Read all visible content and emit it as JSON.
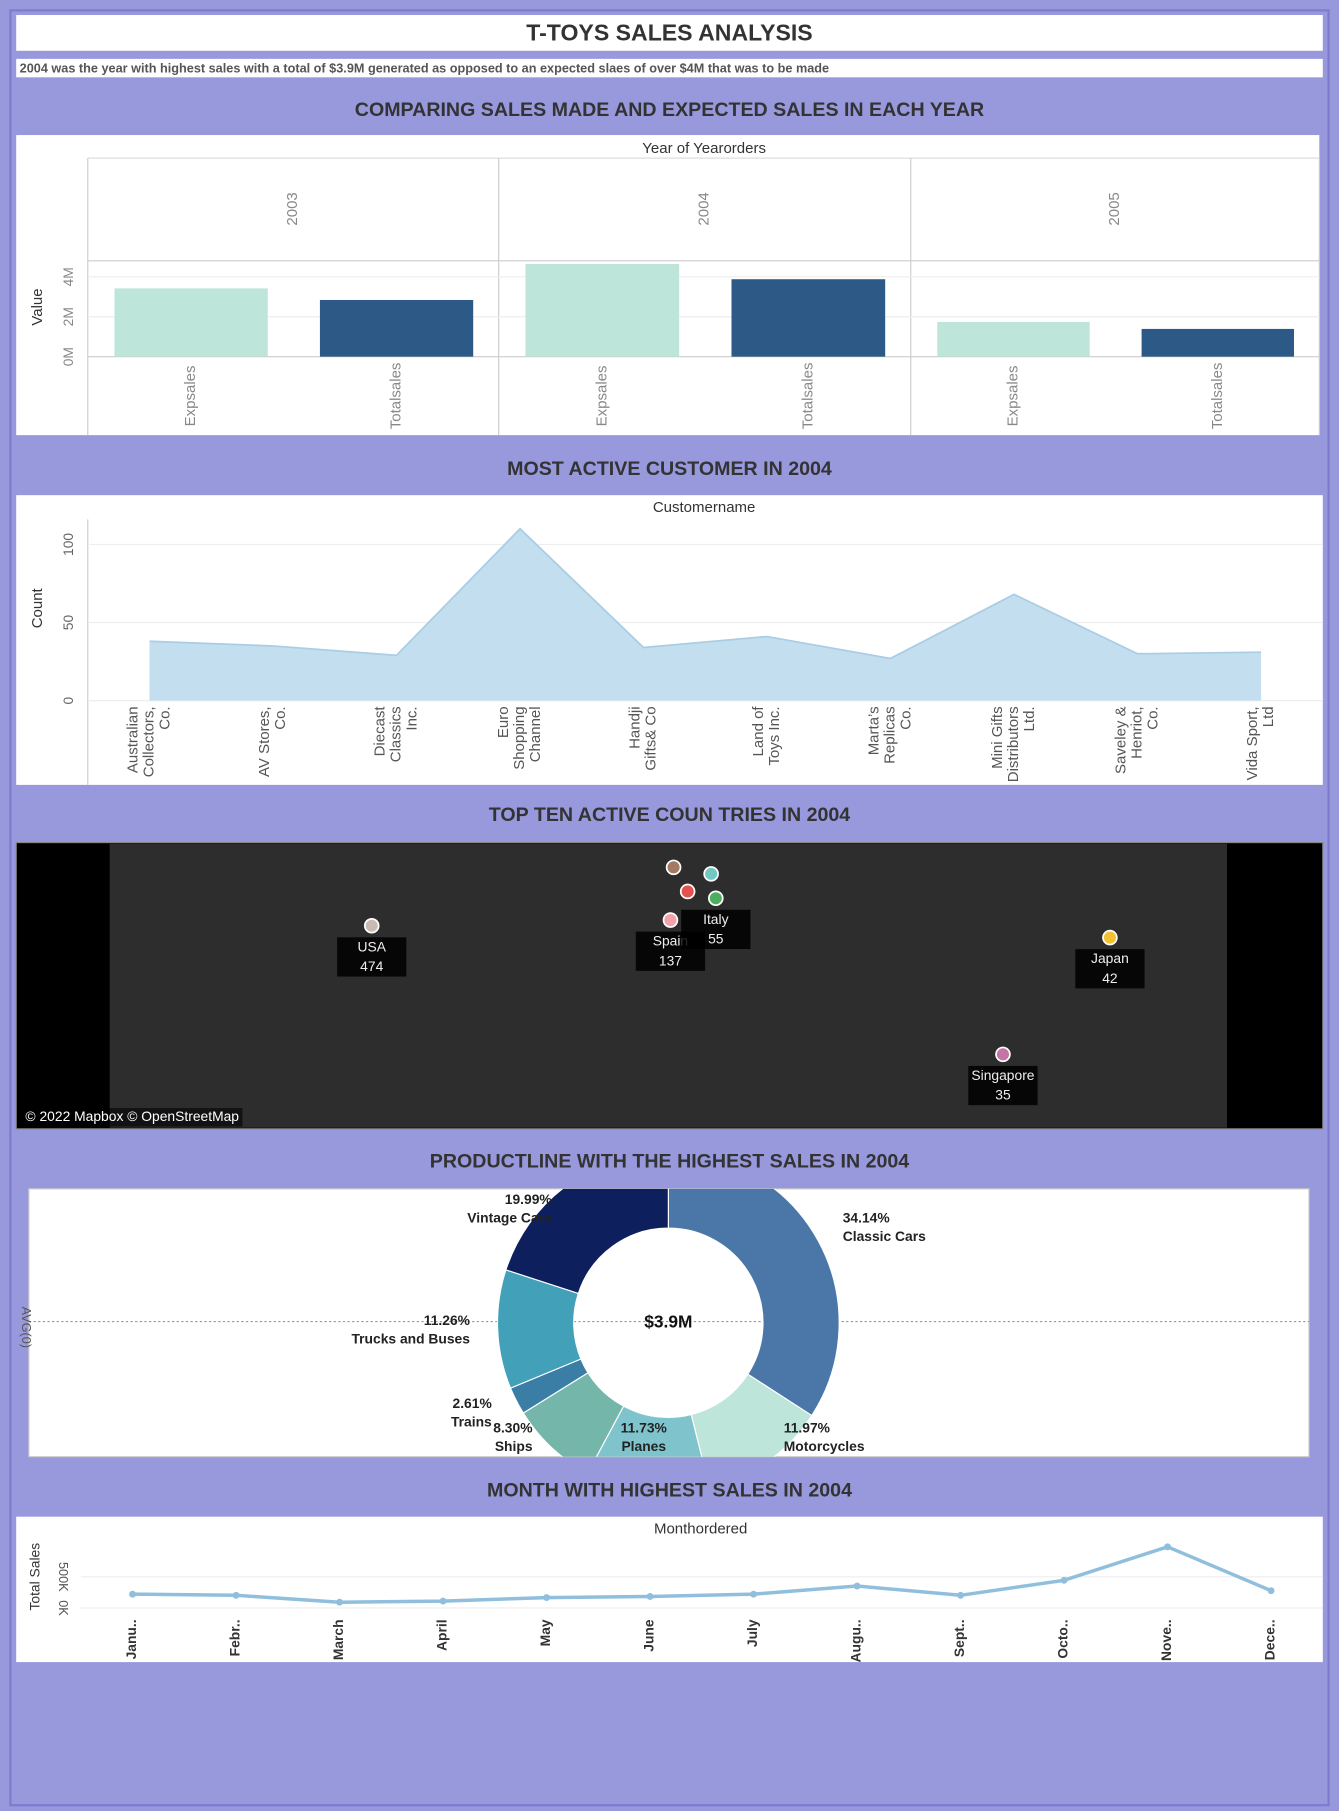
{
  "title": "T-TOYS SALES ANALYSIS",
  "subtitle": "2004 was the year with highest sales with a total of $3.9M generated as opposed to an expected slaes of over $4M that was to be made",
  "chart_data": [
    {
      "type": "bar",
      "title": "COMPARING SALES MADE AND EXPECTED SALES IN EACH YEAR",
      "x_label": "Year of Yearorders",
      "y_label": "Value",
      "categories": [
        "2003",
        "2004",
        "2005"
      ],
      "series": [
        {
          "name": "Expsales",
          "color": "#bde5da",
          "values": [
            3420000,
            4640000,
            1740000
          ]
        },
        {
          "name": "Totalsales",
          "color": "#2c5985",
          "values": [
            2840000,
            3880000,
            1390000
          ]
        }
      ],
      "ylim": [
        0,
        4800000
      ],
      "yticks": [
        {
          "value": 0,
          "label": "0M"
        },
        {
          "value": 2000000,
          "label": "2M"
        },
        {
          "value": 4000000,
          "label": "4M"
        }
      ],
      "grid": true
    },
    {
      "type": "area",
      "title": "MOST ACTIVE CUSTOMER IN 2004",
      "x_label": "Customername",
      "y_label": "Count",
      "categories": [
        "Australian Collectors, Co.",
        "AV Stores, Co.",
        "Diecast Classics Inc.",
        "Euro Shopping Channel",
        "Handji Gifts& Co",
        "Land of Toys Inc.",
        "Marta’s Replicas Co.",
        "Mini Gifts Distributors Ltd.",
        "Saveley & Henriot, Co.",
        "Vida Sport, Ltd"
      ],
      "values": [
        38,
        35,
        29,
        110,
        34,
        41,
        27,
        68,
        30,
        31
      ],
      "color": "#c0dcee",
      "ylim": [
        0,
        116
      ],
      "yticks": [
        0,
        50,
        100
      ],
      "grid": true
    },
    {
      "type": "map",
      "title": "TOP TEN ACTIVE COUN TRIES IN 2004",
      "countries": [
        "USA",
        "Spain",
        "Italy",
        "Japan",
        "Singapore",
        null,
        null,
        null
      ],
      "values": [
        474,
        137,
        55,
        42,
        35,
        null,
        null,
        null
      ],
      "lon": [
        -98,
        -2.5,
        12,
        138,
        103.8,
        -1.5,
        10.5,
        3
      ],
      "lat": [
        39,
        40.4,
        45.5,
        36,
        1.3,
        52,
        50.7,
        47
      ],
      "colors": [
        "#c9bbb3",
        "#f4a2aa",
        "#4caf60",
        "#f2c233",
        "#c474a6",
        "#a57a62",
        "#72c9c1",
        "#e35252"
      ],
      "attribution": "© 2022 Mapbox © OpenStreetMap"
    },
    {
      "type": "pie",
      "title": "PRODUCTLINE WITH THE HIGHEST SALES IN 2004",
      "y_label": "AVG(0)",
      "center_label": "$3.9M",
      "categories": [
        "Classic Cars",
        "Motorcycles",
        "Planes",
        "Ships",
        "Trains",
        "Trucks and Buses",
        "Vintage Cars"
      ],
      "values": [
        34.14,
        11.97,
        11.73,
        8.3,
        2.61,
        11.26,
        19.99
      ],
      "value_labels": [
        "34.14%",
        "11.97%",
        "11.73%",
        "8.30%",
        "2.61%",
        "11.26%",
        "19.99%"
      ],
      "colors": [
        "#4a76a8",
        "#bde5da",
        "#7fc4cc",
        "#74b6a9",
        "#3a7ea6",
        "#43a0b9",
        "#0d1f5c"
      ]
    },
    {
      "type": "line",
      "title": "MONTH WITH HIGHEST SALES IN 2004",
      "x_label": "Monthordered",
      "y_label": "Total Sales",
      "categories": [
        "Janu..",
        "Febr..",
        "March",
        "April",
        "May",
        "June",
        "July",
        "Augu..",
        "Sept..",
        "Octo..",
        "Nove..",
        "Dece.."
      ],
      "values": [
        222000,
        204000,
        93000,
        111000,
        167000,
        185000,
        222000,
        352000,
        204000,
        444000,
        981000,
        278000
      ],
      "color": "#8fbfdc",
      "ylim": [
        -90000,
        1020000
      ],
      "yticks": [
        {
          "value": 0,
          "label": "0K"
        },
        {
          "value": 500000,
          "label": "500K"
        }
      ],
      "grid": true
    }
  ]
}
